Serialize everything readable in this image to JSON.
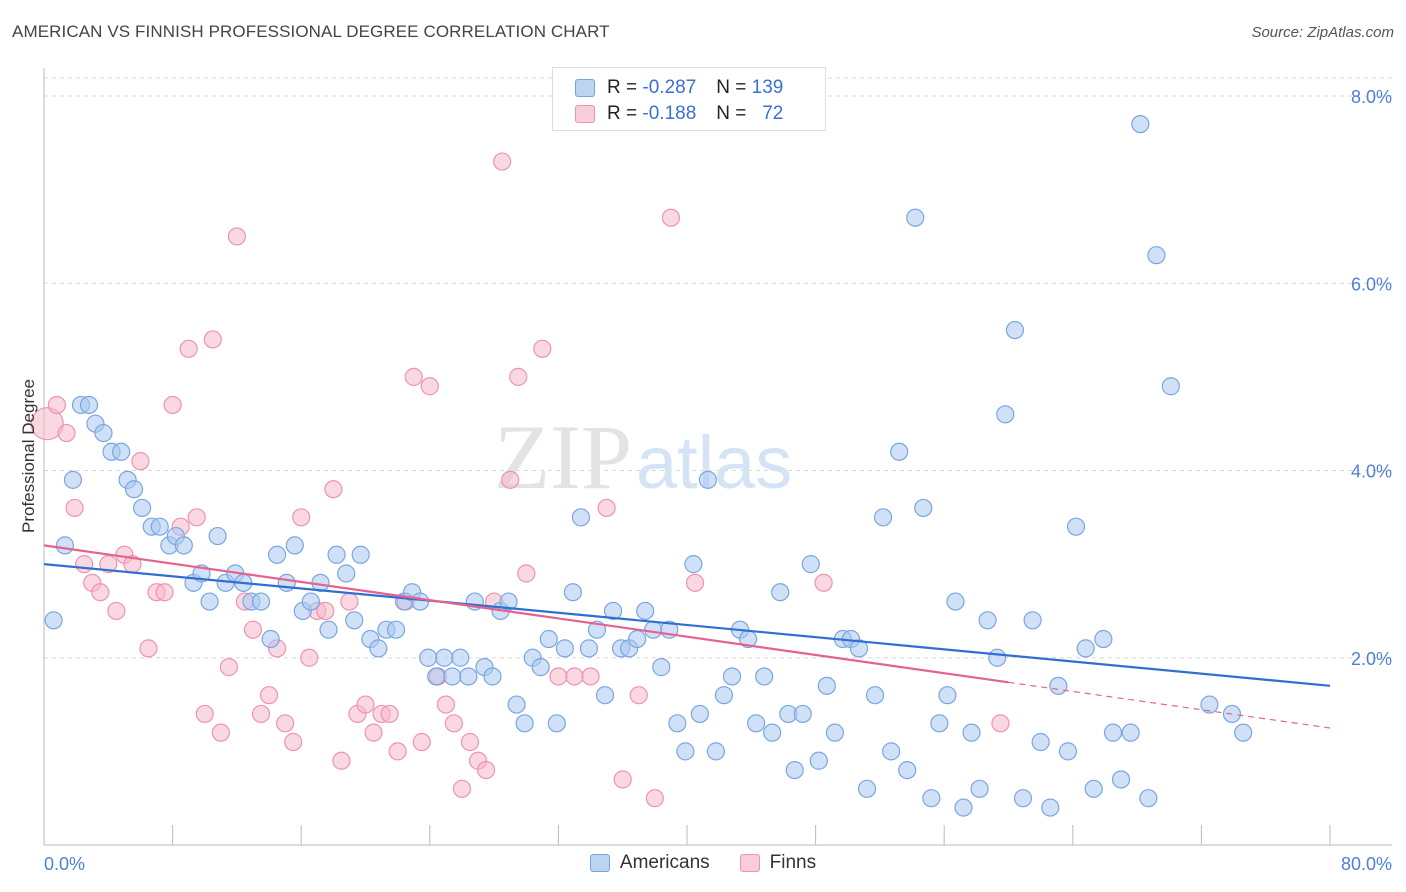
{
  "title": "AMERICAN VS FINNISH PROFESSIONAL DEGREE CORRELATION CHART",
  "source": "Source: ZipAtlas.com",
  "watermark": {
    "zip": "ZIP",
    "atlas": "atlas"
  },
  "legend": {
    "americans": {
      "r_label": "R =",
      "r_value": "-0.287",
      "n_label": "N =",
      "n_value": "139"
    },
    "finns": {
      "r_label": "R =",
      "r_value": "-0.188",
      "n_label": "N =",
      "n_value": "72"
    }
  },
  "colors": {
    "americans_fill": "#a9c8f0",
    "americans_stroke": "#7aa6e0",
    "americans_line": "#2f6fd1",
    "finns_fill": "#f6b8cb",
    "finns_stroke": "#ee93b0",
    "finns_line": "#e5628f",
    "grid": "#d9d9d9",
    "tick_text": "#4f7fd6"
  },
  "chart_data": {
    "type": "scatter",
    "ylabel": "Professional Degree",
    "xlim": [
      0,
      80
    ],
    "ylim": [
      0,
      8.0
    ],
    "x_tick_labels": [
      "0.0%",
      "80.0%"
    ],
    "y_ticks": [
      2.0,
      4.0,
      6.0,
      8.0
    ],
    "y_tick_labels": [
      "2.0%",
      "4.0%",
      "6.0%",
      "8.0%"
    ],
    "grid": "horizontal dashed",
    "legend_position": "top-center",
    "series": [
      {
        "name": "Americans",
        "trend": {
          "x": [
            0,
            80
          ],
          "y": [
            3.0,
            1.7
          ],
          "dashed_from": null
        },
        "points": [
          [
            0.6,
            2.4
          ],
          [
            1.3,
            3.2
          ],
          [
            1.8,
            3.9
          ],
          [
            2.3,
            4.7
          ],
          [
            2.8,
            4.7
          ],
          [
            3.2,
            4.5
          ],
          [
            3.7,
            4.4
          ],
          [
            4.2,
            4.2
          ],
          [
            4.8,
            4.2
          ],
          [
            5.2,
            3.9
          ],
          [
            5.6,
            3.8
          ],
          [
            6.1,
            3.6
          ],
          [
            6.7,
            3.4
          ],
          [
            7.2,
            3.4
          ],
          [
            7.8,
            3.2
          ],
          [
            8.2,
            3.3
          ],
          [
            8.7,
            3.2
          ],
          [
            9.3,
            2.8
          ],
          [
            9.8,
            2.9
          ],
          [
            10.3,
            2.6
          ],
          [
            10.8,
            3.3
          ],
          [
            11.3,
            2.8
          ],
          [
            11.9,
            2.9
          ],
          [
            12.4,
            2.8
          ],
          [
            12.9,
            2.6
          ],
          [
            13.5,
            2.6
          ],
          [
            14.1,
            2.2
          ],
          [
            14.5,
            3.1
          ],
          [
            15.1,
            2.8
          ],
          [
            15.6,
            3.2
          ],
          [
            16.1,
            2.5
          ],
          [
            16.6,
            2.6
          ],
          [
            17.2,
            2.8
          ],
          [
            17.7,
            2.3
          ],
          [
            18.2,
            3.1
          ],
          [
            18.8,
            2.9
          ],
          [
            19.3,
            2.4
          ],
          [
            19.7,
            3.1
          ],
          [
            20.3,
            2.2
          ],
          [
            20.8,
            2.1
          ],
          [
            21.3,
            2.3
          ],
          [
            21.9,
            2.3
          ],
          [
            22.4,
            2.6
          ],
          [
            22.9,
            2.7
          ],
          [
            23.4,
            2.6
          ],
          [
            23.9,
            2.0
          ],
          [
            24.4,
            1.8
          ],
          [
            24.9,
            2.0
          ],
          [
            25.4,
            1.8
          ],
          [
            25.9,
            2.0
          ],
          [
            26.4,
            1.8
          ],
          [
            26.8,
            2.6
          ],
          [
            27.4,
            1.9
          ],
          [
            27.9,
            1.8
          ],
          [
            28.4,
            2.5
          ],
          [
            28.9,
            2.6
          ],
          [
            29.4,
            1.5
          ],
          [
            29.9,
            1.3
          ],
          [
            30.4,
            2.0
          ],
          [
            30.9,
            1.9
          ],
          [
            31.4,
            2.2
          ],
          [
            31.9,
            1.3
          ],
          [
            32.4,
            2.1
          ],
          [
            32.9,
            2.7
          ],
          [
            33.4,
            3.5
          ],
          [
            33.9,
            2.1
          ],
          [
            34.4,
            2.3
          ],
          [
            34.9,
            1.6
          ],
          [
            35.4,
            2.5
          ],
          [
            35.9,
            2.1
          ],
          [
            36.4,
            2.1
          ],
          [
            36.9,
            2.2
          ],
          [
            37.4,
            2.5
          ],
          [
            37.9,
            2.3
          ],
          [
            38.4,
            1.9
          ],
          [
            38.9,
            2.3
          ],
          [
            39.4,
            1.3
          ],
          [
            39.9,
            1.0
          ],
          [
            40.4,
            3.0
          ],
          [
            40.8,
            1.4
          ],
          [
            41.3,
            3.9
          ],
          [
            41.8,
            1.0
          ],
          [
            42.3,
            1.6
          ],
          [
            42.8,
            1.8
          ],
          [
            43.3,
            2.3
          ],
          [
            43.8,
            2.2
          ],
          [
            44.3,
            1.3
          ],
          [
            44.8,
            1.8
          ],
          [
            45.3,
            1.2
          ],
          [
            45.8,
            2.7
          ],
          [
            46.3,
            1.4
          ],
          [
            46.7,
            0.8
          ],
          [
            47.2,
            1.4
          ],
          [
            47.7,
            3.0
          ],
          [
            48.2,
            0.9
          ],
          [
            48.7,
            1.7
          ],
          [
            49.2,
            1.2
          ],
          [
            49.7,
            2.2
          ],
          [
            50.2,
            2.2
          ],
          [
            50.7,
            2.1
          ],
          [
            51.2,
            0.6
          ],
          [
            51.7,
            1.6
          ],
          [
            52.2,
            3.5
          ],
          [
            52.7,
            1.0
          ],
          [
            53.2,
            4.2
          ],
          [
            53.7,
            0.8
          ],
          [
            54.2,
            6.7
          ],
          [
            54.7,
            3.6
          ],
          [
            55.2,
            0.5
          ],
          [
            55.7,
            1.3
          ],
          [
            56.2,
            1.6
          ],
          [
            56.7,
            2.6
          ],
          [
            57.2,
            0.4
          ],
          [
            57.7,
            1.2
          ],
          [
            58.2,
            0.6
          ],
          [
            58.7,
            2.4
          ],
          [
            59.3,
            2.0
          ],
          [
            59.8,
            4.6
          ],
          [
            60.4,
            5.5
          ],
          [
            60.9,
            0.5
          ],
          [
            61.5,
            2.4
          ],
          [
            62.0,
            1.1
          ],
          [
            62.6,
            0.4
          ],
          [
            63.1,
            1.7
          ],
          [
            63.7,
            1.0
          ],
          [
            64.2,
            3.4
          ],
          [
            64.8,
            2.1
          ],
          [
            65.3,
            0.6
          ],
          [
            65.9,
            2.2
          ],
          [
            66.5,
            1.2
          ],
          [
            67.0,
            0.7
          ],
          [
            67.6,
            1.2
          ],
          [
            68.2,
            7.7
          ],
          [
            68.7,
            0.5
          ],
          [
            69.2,
            6.3
          ],
          [
            70.1,
            4.9
          ],
          [
            72.5,
            1.5
          ],
          [
            73.9,
            1.4
          ],
          [
            74.6,
            1.2
          ]
        ]
      },
      {
        "name": "Finns",
        "trend": {
          "x": [
            0,
            80
          ],
          "y": [
            3.2,
            1.25
          ],
          "dashed_from": 60
        },
        "points": [
          [
            0.2,
            4.5
          ],
          [
            0.8,
            4.7
          ],
          [
            1.4,
            4.4
          ],
          [
            1.9,
            3.6
          ],
          [
            2.5,
            3.0
          ],
          [
            3.0,
            2.8
          ],
          [
            3.5,
            2.7
          ],
          [
            4.0,
            3.0
          ],
          [
            4.5,
            2.5
          ],
          [
            5.0,
            3.1
          ],
          [
            5.5,
            3.0
          ],
          [
            6.0,
            4.1
          ],
          [
            6.5,
            2.1
          ],
          [
            7.0,
            2.7
          ],
          [
            7.5,
            2.7
          ],
          [
            8.0,
            4.7
          ],
          [
            8.5,
            3.4
          ],
          [
            9.0,
            5.3
          ],
          [
            9.5,
            3.5
          ],
          [
            10.0,
            1.4
          ],
          [
            10.5,
            5.4
          ],
          [
            11.0,
            1.2
          ],
          [
            11.5,
            1.9
          ],
          [
            12.0,
            6.5
          ],
          [
            12.5,
            2.6
          ],
          [
            13.0,
            2.3
          ],
          [
            13.5,
            1.4
          ],
          [
            14.0,
            1.6
          ],
          [
            14.5,
            2.1
          ],
          [
            15.0,
            1.3
          ],
          [
            15.5,
            1.1
          ],
          [
            16.0,
            3.5
          ],
          [
            16.5,
            2.0
          ],
          [
            17.0,
            2.5
          ],
          [
            17.5,
            2.5
          ],
          [
            18.0,
            3.8
          ],
          [
            18.5,
            0.9
          ],
          [
            19.0,
            2.6
          ],
          [
            19.5,
            1.4
          ],
          [
            20.0,
            1.5
          ],
          [
            20.5,
            1.2
          ],
          [
            21.0,
            1.4
          ],
          [
            21.5,
            1.4
          ],
          [
            22.0,
            1.0
          ],
          [
            22.5,
            2.6
          ],
          [
            23.0,
            5.0
          ],
          [
            23.5,
            1.1
          ],
          [
            24.0,
            4.9
          ],
          [
            24.5,
            1.8
          ],
          [
            25.0,
            1.5
          ],
          [
            25.5,
            1.3
          ],
          [
            26.0,
            0.6
          ],
          [
            26.5,
            1.1
          ],
          [
            27.0,
            0.9
          ],
          [
            27.5,
            0.8
          ],
          [
            28.0,
            2.6
          ],
          [
            28.5,
            7.3
          ],
          [
            29.0,
            3.9
          ],
          [
            29.5,
            5.0
          ],
          [
            30.0,
            2.9
          ],
          [
            31.0,
            5.3
          ],
          [
            32.0,
            1.8
          ],
          [
            33.0,
            1.8
          ],
          [
            34.0,
            1.8
          ],
          [
            35.0,
            3.6
          ],
          [
            36.0,
            0.7
          ],
          [
            37.0,
            1.6
          ],
          [
            38.0,
            0.5
          ],
          [
            39.0,
            6.7
          ],
          [
            40.5,
            2.8
          ],
          [
            48.5,
            2.8
          ],
          [
            59.5,
            1.3
          ]
        ]
      }
    ]
  }
}
